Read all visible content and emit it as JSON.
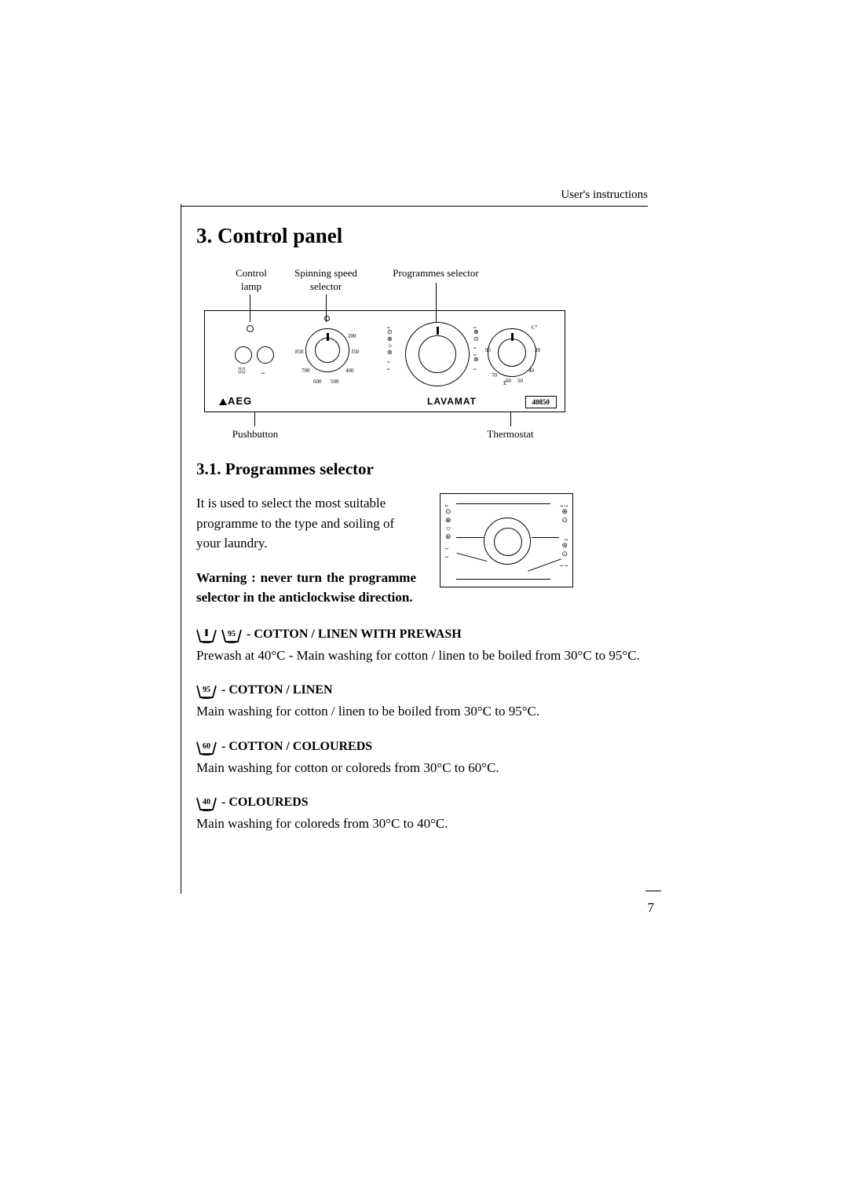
{
  "header": {
    "running_head": "User's instructions"
  },
  "section": {
    "number": "3.",
    "title": "Control panel"
  },
  "panel_diagram": {
    "labels": {
      "control_lamp": "Control\nlamp",
      "spinning_speed": "Spinning speed\nselector",
      "programmes_selector": "Programmes selector",
      "pushbutton": "Pushbutton",
      "thermostat": "Thermostat"
    },
    "brand": "AEG",
    "model": "LAVAMAT",
    "model_number": "40850",
    "spin_ticks": [
      "200",
      "350",
      "400",
      "500",
      "600",
      "700",
      "850"
    ],
    "thermo_ticks": [
      "C°",
      "30",
      "40",
      "50",
      "60",
      "70",
      "E",
      "95"
    ]
  },
  "subsection": {
    "number": "3.1.",
    "title": "Programmes selector",
    "intro": "It is used to select the most suitable programme to the type and soiling of your laundry.",
    "warning": "Warning : never turn the programme selector in the anticlockwise direction."
  },
  "programmes": [
    {
      "icons": [
        {
          "temp": "",
          "bar": true
        },
        {
          "temp": "95"
        }
      ],
      "heading": "- COTTON / LINEN WITH PREWASH",
      "desc": "Prewash at 40°C - Main washing for cotton / linen to be boiled from 30°C to 95°C."
    },
    {
      "icons": [
        {
          "temp": "95"
        }
      ],
      "heading": "- COTTON / LINEN",
      "desc": "Main washing for cotton / linen to be boiled from 30°C to 95°C."
    },
    {
      "icons": [
        {
          "temp": "60"
        }
      ],
      "heading": "- COTTON / COLOUREDS",
      "desc": "Main washing for cotton or coloreds from 30°C to 60°C."
    },
    {
      "icons": [
        {
          "temp": "40"
        }
      ],
      "heading": "- COLOUREDS",
      "desc": "Main washing for coloreds from 30°C to 40°C."
    }
  ],
  "page_number": "7"
}
